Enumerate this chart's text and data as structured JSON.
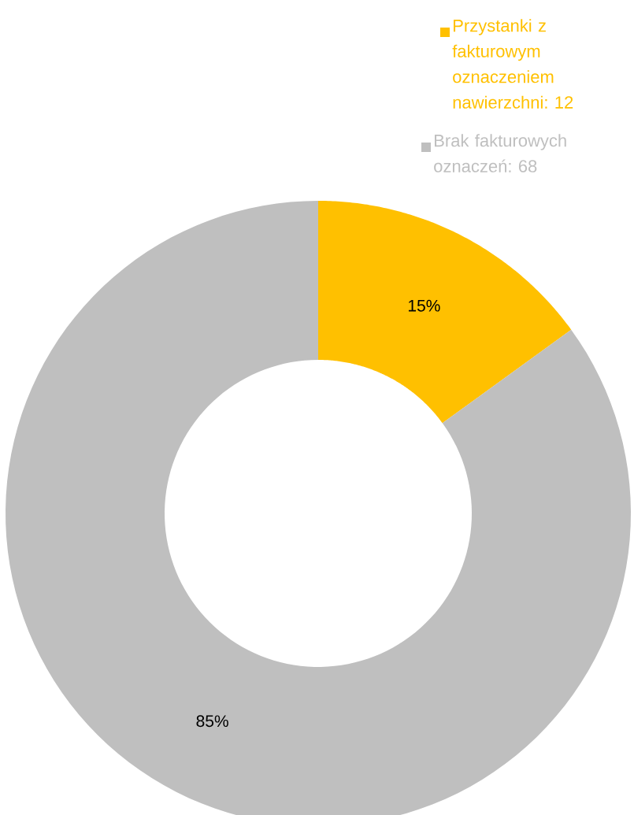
{
  "chart_data": {
    "type": "donut",
    "categories": [
      "Przystanki z fakturowym oznaczeniem nawierzchni: 12",
      "Brak fakturowych oznaczeń: 68"
    ],
    "values": [
      15,
      85
    ],
    "colors": [
      "#ffc000",
      "#bfbfbf"
    ],
    "value_labels": [
      "15%",
      "85%"
    ],
    "legend": "top right"
  }
}
